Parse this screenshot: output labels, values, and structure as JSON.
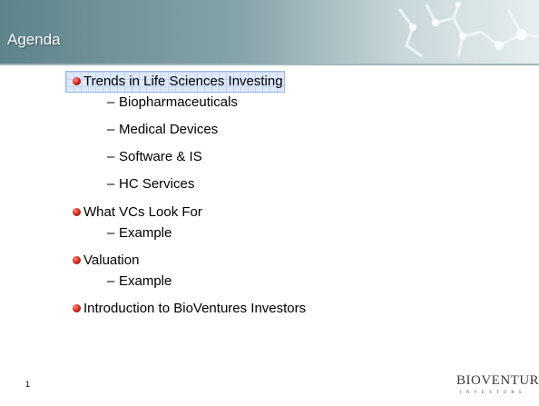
{
  "header": {
    "title": "Agenda"
  },
  "items": [
    {
      "text": "Trends in Life Sciences Investing",
      "subitems": [
        "Biopharmaceuticals",
        "Medical Devices",
        "Software & IS",
        "HC Services"
      ]
    },
    {
      "text": "What VCs Look For",
      "subitems": [
        "Example"
      ]
    },
    {
      "text": "Valuation",
      "subitems": [
        "Example"
      ]
    },
    {
      "text": "Introduction to BioVentures Investors",
      "subitems": []
    }
  ],
  "page_number": "1",
  "logo": {
    "name": "BIOVENTURES",
    "tagline": "INVESTORS"
  }
}
